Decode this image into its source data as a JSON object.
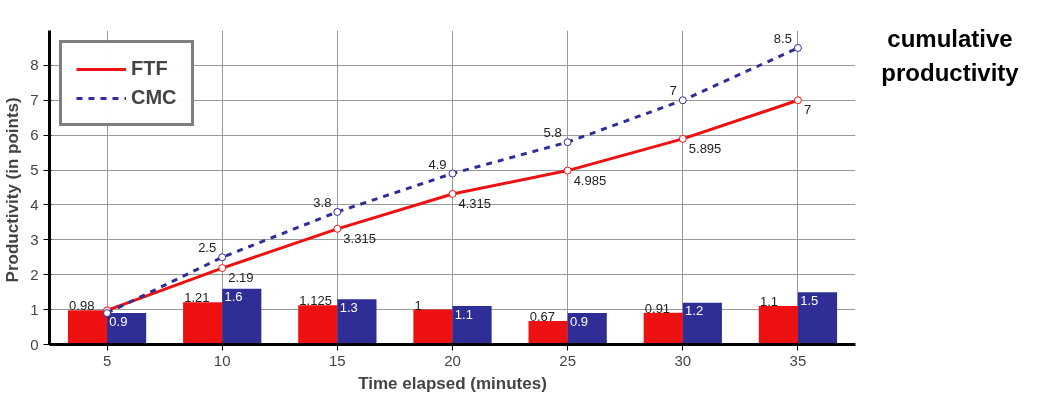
{
  "chart_data": {
    "type": "bar",
    "xlabel": "Time elapsed (minutes)",
    "ylabel": "Productivity  (in points)",
    "x": [
      5,
      10,
      15,
      20,
      25,
      30,
      35
    ],
    "series": [
      {
        "color": "#ee1111",
        "values": [
          0.98,
          1.21,
          1.125,
          1,
          0.67,
          0.91,
          1.1
        ]
      },
      {
        "color": "#2e2e96",
        "values": [
          0.9,
          1.6,
          1.3,
          1.1,
          0.9,
          1.2,
          1.5
        ]
      },
      {
        "name": "FTF",
        "type": "line",
        "color": "#ee1111",
        "line_style": "solid",
        "values": [
          0.98,
          2.19,
          3.315,
          4.315,
          4.985,
          5.895,
          7
        ],
        "value_labels": [
          null,
          "2.19",
          "3.315",
          "4.315",
          "4.985",
          "5.895",
          "7"
        ]
      },
      {
        "name": "CMC",
        "type": "line",
        "color": "#2e2e96",
        "line_style": "dashed",
        "values": [
          0.9,
          2.5,
          3.8,
          4.9,
          5.8,
          7,
          8.5
        ],
        "value_labels": [
          null,
          "2.5",
          "3.8",
          "4.9",
          "5.8",
          "7",
          "8.5"
        ]
      }
    ],
    "data_labels": true,
    "marker": "circle",
    "xlim": [
      2.5,
      37.5
    ],
    "xticks": [
      5,
      10,
      15,
      20,
      25,
      30,
      35
    ],
    "ylim": [
      0,
      9
    ],
    "yticks": [
      0,
      1,
      2,
      3,
      4,
      5,
      6,
      7,
      8
    ],
    "grid": true,
    "legend": "top left",
    "annotations": [
      "cumulative productivity"
    ]
  }
}
